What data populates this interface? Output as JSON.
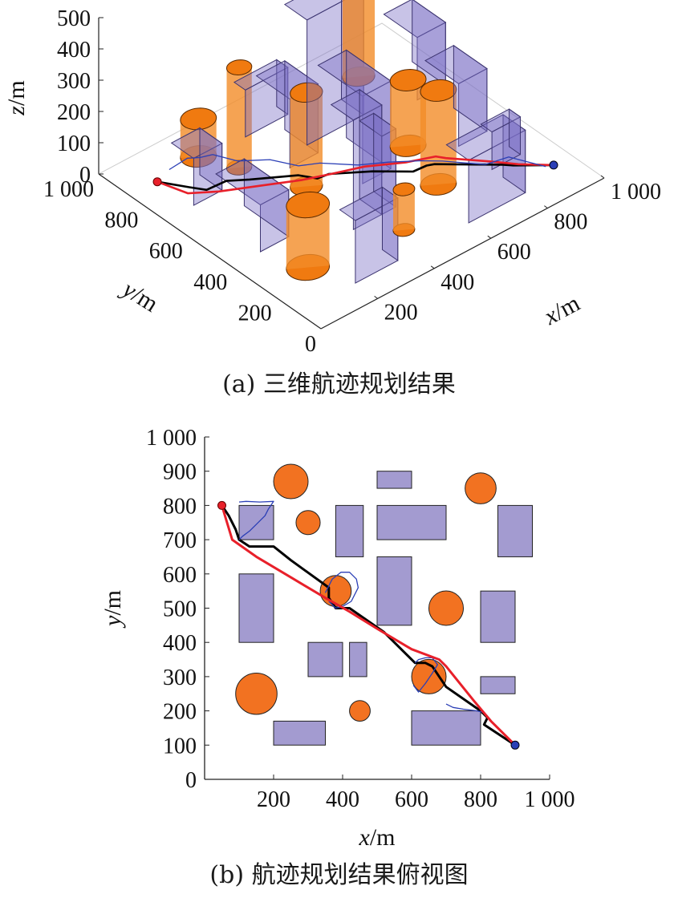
{
  "chart_data": [
    {
      "type": "3d-path",
      "caption": "(a) 三维航迹规划结果",
      "xlabel": "x/m",
      "ylabel": "y/m",
      "zlabel": "z/m",
      "xlim": [
        0,
        1000
      ],
      "ylim": [
        0,
        1000
      ],
      "zlim": [
        0,
        500
      ],
      "xticks": [
        "200",
        "400",
        "600",
        "800",
        "1 000"
      ],
      "yticks": [
        "0",
        "200",
        "400",
        "600",
        "800",
        "1 000"
      ],
      "zticks": [
        "0",
        "100",
        "200",
        "300",
        "400",
        "500"
      ],
      "box_color": "#7b6fc6",
      "cylinder_color": "#f28c28",
      "boxes": [
        {
          "x": [
            100,
            200
          ],
          "y": [
            700,
            800
          ],
          "h": 150
        },
        {
          "x": [
            100,
            200
          ],
          "y": [
            400,
            600
          ],
          "h": 150
        },
        {
          "x": [
            350,
            450
          ],
          "y": [
            300,
            400
          ],
          "h": 350
        },
        {
          "x": [
            400,
            500
          ],
          "y": [
            650,
            800
          ],
          "h": 220
        },
        {
          "x": [
            500,
            700
          ],
          "y": [
            700,
            800
          ],
          "h": 400
        },
        {
          "x": [
            450,
            500
          ],
          "y": [
            300,
            400
          ],
          "h": 250
        },
        {
          "x": [
            500,
            600
          ],
          "y": [
            450,
            650
          ],
          "h": 280
        },
        {
          "x": [
            400,
            550
          ],
          "y": [
            850,
            900
          ],
          "h": 150
        },
        {
          "x": [
            600,
            800
          ],
          "y": [
            100,
            200
          ],
          "h": 200
        },
        {
          "x": [
            200,
            350
          ],
          "y": [
            100,
            170
          ],
          "h": 200
        },
        {
          "x": [
            850,
            950
          ],
          "y": [
            650,
            800
          ],
          "h": 200
        },
        {
          "x": [
            800,
            900
          ],
          "y": [
            400,
            550
          ],
          "h": 200
        },
        {
          "x": [
            800,
            900
          ],
          "y": [
            250,
            300
          ],
          "h": 120
        }
      ],
      "cylinders": [
        {
          "cx": 250,
          "cy": 870,
          "r": 50,
          "h": 120
        },
        {
          "cx": 300,
          "cy": 750,
          "r": 35,
          "h": 320
        },
        {
          "cx": 380,
          "cy": 550,
          "r": 45,
          "h": 300
        },
        {
          "cx": 150,
          "cy": 250,
          "r": 60,
          "h": 200
        },
        {
          "cx": 800,
          "cy": 850,
          "r": 45,
          "h": 530
        },
        {
          "cx": 700,
          "cy": 500,
          "r": 50,
          "h": 210
        },
        {
          "cx": 450,
          "cy": 200,
          "r": 30,
          "h": 130
        },
        {
          "cx": 650,
          "cy": 300,
          "r": 50,
          "h": 300
        }
      ],
      "series": [
        {
          "color": "#000000",
          "x": [
            50,
            100,
            130,
            200,
            250,
            360,
            380,
            420,
            520,
            600,
            640,
            660,
            700,
            800,
            820,
            900
          ],
          "y": [
            800,
            720,
            680,
            680,
            640,
            560,
            500,
            500,
            430,
            350,
            340,
            330,
            300,
            200,
            180,
            100
          ],
          "z": [
            50,
            48,
            45,
            40,
            40,
            40,
            50,
            45,
            40,
            40,
            45,
            45,
            40,
            40,
            38,
            40
          ]
        },
        {
          "color": "#e8202a",
          "x": [
            50,
            80,
            150,
            250,
            350,
            420,
            500,
            600,
            680,
            700,
            780,
            830,
            900
          ],
          "y": [
            800,
            700,
            650,
            590,
            530,
            490,
            440,
            380,
            350,
            330,
            230,
            170,
            100
          ],
          "z": [
            50,
            48,
            45,
            45,
            45,
            50,
            60,
            55,
            50,
            45,
            45,
            42,
            40
          ]
        },
        {
          "color": "#2b3fb6",
          "x": [
            100,
            160,
            200,
            230,
            270,
            330,
            360,
            420,
            500,
            560,
            620,
            680,
            760,
            820,
            880
          ],
          "y": [
            810,
            805,
            800,
            780,
            720,
            650,
            560,
            540,
            470,
            410,
            340,
            320,
            230,
            200,
            110
          ],
          "z": [
            60,
            70,
            55,
            60,
            50,
            60,
            70,
            60,
            50,
            60,
            70,
            50,
            45,
            55,
            40
          ]
        }
      ],
      "start": {
        "x": 50,
        "y": 800,
        "z": 50,
        "color": "#e8202a"
      },
      "goal": {
        "x": 900,
        "y": 100,
        "z": 40,
        "color": "#2b3fb6"
      }
    },
    {
      "type": "path-top-view",
      "caption": "(b) 航迹规划结果俯视图",
      "xlabel": "x/m",
      "ylabel": "y/m",
      "xlim": [
        0,
        1000
      ],
      "ylim": [
        0,
        1000
      ],
      "xticks": [
        "200",
        "400",
        "600",
        "800",
        "1 000"
      ],
      "yticks": [
        "0",
        "100",
        "200",
        "300",
        "400",
        "500",
        "600",
        "700",
        "800",
        "900",
        "1 000"
      ],
      "box_color": "#a39bd0",
      "cylinder_color": "#f27221",
      "rects": [
        {
          "x": [
            100,
            200
          ],
          "y": [
            700,
            800
          ]
        },
        {
          "x": [
            100,
            200
          ],
          "y": [
            400,
            600
          ]
        },
        {
          "x": [
            300,
            400
          ],
          "y": [
            300,
            400
          ]
        },
        {
          "x": [
            420,
            470
          ],
          "y": [
            300,
            400
          ]
        },
        {
          "x": [
            380,
            460
          ],
          "y": [
            650,
            800
          ]
        },
        {
          "x": [
            500,
            700
          ],
          "y": [
            700,
            800
          ]
        },
        {
          "x": [
            500,
            600
          ],
          "y": [
            450,
            650
          ]
        },
        {
          "x": [
            500,
            600
          ],
          "y": [
            850,
            900
          ]
        },
        {
          "x": [
            600,
            800
          ],
          "y": [
            100,
            200
          ]
        },
        {
          "x": [
            200,
            350
          ],
          "y": [
            100,
            170
          ]
        },
        {
          "x": [
            850,
            950
          ],
          "y": [
            650,
            800
          ]
        },
        {
          "x": [
            800,
            900
          ],
          "y": [
            400,
            550
          ]
        },
        {
          "x": [
            800,
            900
          ],
          "y": [
            250,
            300
          ]
        }
      ],
      "circles": [
        {
          "cx": 250,
          "cy": 870,
          "r": 50
        },
        {
          "cx": 300,
          "cy": 750,
          "r": 35
        },
        {
          "cx": 380,
          "cy": 550,
          "r": 45
        },
        {
          "cx": 150,
          "cy": 250,
          "r": 60
        },
        {
          "cx": 800,
          "cy": 850,
          "r": 45
        },
        {
          "cx": 700,
          "cy": 500,
          "r": 50
        },
        {
          "cx": 450,
          "cy": 200,
          "r": 30
        },
        {
          "cx": 650,
          "cy": 300,
          "r": 50
        }
      ],
      "series": [
        {
          "color": "#000000",
          "width": 3,
          "x": [
            50,
            70,
            90,
            100,
            130,
            200,
            250,
            360,
            360,
            380,
            420,
            520,
            600,
            610,
            640,
            660,
            680,
            700,
            800,
            820,
            810,
            900
          ],
          "y": [
            800,
            770,
            730,
            700,
            680,
            680,
            640,
            560,
            530,
            500,
            500,
            430,
            350,
            340,
            340,
            330,
            300,
            270,
            200,
            180,
            160,
            100
          ]
        },
        {
          "color": "#e8202a",
          "width": 3,
          "x": [
            50,
            80,
            150,
            250,
            350,
            420,
            500,
            600,
            680,
            700,
            780,
            830,
            900
          ],
          "y": [
            800,
            700,
            650,
            590,
            530,
            490,
            440,
            380,
            350,
            330,
            230,
            170,
            100
          ]
        },
        {
          "color": "#2b3fb6",
          "width": 1.3,
          "x": [
            100,
            120,
            160,
            200,
            185,
            175,
            150,
            130,
            110,
            100
          ],
          "y": [
            810,
            812,
            810,
            812,
            790,
            770,
            745,
            725,
            710,
            700
          ]
        },
        {
          "color": "#2b3fb6",
          "width": 1.3,
          "x": [
            350,
            370,
            395,
            420,
            440,
            445,
            425,
            400,
            380,
            360
          ],
          "y": [
            545,
            585,
            605,
            605,
            585,
            560,
            520,
            505,
            500,
            520
          ]
        },
        {
          "color": "#2b3fb6",
          "width": 1.3,
          "x": [
            610,
            620,
            640,
            660,
            675,
            660,
            640,
            620,
            605
          ],
          "y": [
            340,
            350,
            355,
            355,
            335,
            310,
            280,
            255,
            275
          ]
        },
        {
          "color": "#2b3fb6",
          "width": 1.3,
          "x": [
            700,
            720,
            750,
            790,
            810
          ],
          "y": [
            220,
            210,
            205,
            200,
            195
          ]
        }
      ],
      "start": {
        "x": 50,
        "y": 800,
        "color": "#e8202a"
      },
      "goal": {
        "x": 900,
        "y": 100,
        "color": "#2b3fb6"
      }
    }
  ]
}
